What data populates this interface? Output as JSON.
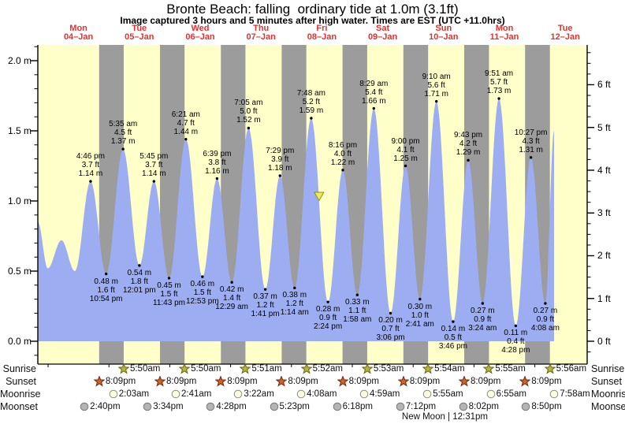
{
  "title": "Bronte Beach: falling  ordinary tide at 1.0m (3.1ft)",
  "subtitle": "Image captured 3 hours and 5 minutes after high water. Times are EST (UTC +11.0hrs)",
  "colors": {
    "day_background": "#ffffca",
    "night_band": "#9c9c9c",
    "tide_fill": "#9dadf2",
    "day_label_red": "#e53030",
    "sunrise_star_fill": "#b9b536",
    "sunrise_star_stroke": "#6b6b1d",
    "sunset_star_fill": "#cf6328",
    "sunset_star_stroke": "#7a2d12",
    "moonrise_circle_fill": "#ffffd9",
    "moonrise_circle_stroke": "#8f8f8f",
    "moonset_circle_fill": "#b4b4b4",
    "moonset_circle_stroke": "#787878",
    "marker_fill": "#f0ec54",
    "marker_stroke": "#8f8f23"
  },
  "chart_data": {
    "type": "area",
    "title": "Bronte Beach: falling  ordinary tide at 1.0m (3.1ft)",
    "ylabel_left": "m",
    "ylabel_right": "ft",
    "y_axis_left": {
      "labels": [
        "0.0 m",
        "0.5 m",
        "1.0 m",
        "1.5 m",
        "2.0 m"
      ],
      "values": [
        0.0,
        0.5,
        1.0,
        1.5,
        2.0
      ],
      "minor_step": 0.1
    },
    "y_axis_right": {
      "labels": [
        "0 ft",
        "1 ft",
        "2 ft",
        "3 ft",
        "4 ft",
        "5 ft",
        "6 ft"
      ],
      "values": [
        0,
        1,
        2,
        3,
        4,
        5,
        6
      ],
      "minor_step": 0.25
    },
    "ylim_m": [
      -0.14,
      2.11
    ],
    "grid": false,
    "legend": "none",
    "days": [
      {
        "name": "Mon",
        "date": "04–Jan"
      },
      {
        "name": "Tue",
        "date": "05–Jan"
      },
      {
        "name": "Wed",
        "date": "06–Jan"
      },
      {
        "name": "Thu",
        "date": "07–Jan"
      },
      {
        "name": "Fri",
        "date": "08–Jan"
      },
      {
        "name": "Sat",
        "date": "09–Jan"
      },
      {
        "name": "Sun",
        "date": "10–Jan"
      },
      {
        "name": "Mon",
        "date": "11–Jan"
      },
      {
        "name": "Tue",
        "date": "12–Jan"
      }
    ],
    "tide_events": [
      {
        "type": "high",
        "t": 0.6986,
        "h": 1.14,
        "time": "4:46 pm",
        "ft": "3.7 ft",
        "m": "1.14 m"
      },
      {
        "type": "low",
        "t": 0.9542,
        "h": 0.48,
        "time": "10:54 pm",
        "ft": "1.6 ft",
        "m": "0.48 m"
      },
      {
        "type": "high",
        "t": 1.2326,
        "h": 1.37,
        "time": "5:35 am",
        "ft": "4.5 ft",
        "m": "1.37 m"
      },
      {
        "type": "low",
        "t": 1.5007,
        "h": 0.54,
        "time": "12:01 pm",
        "ft": "1.8 ft",
        "m": "0.54 m"
      },
      {
        "type": "high",
        "t": 1.7396,
        "h": 1.14,
        "time": "5:45 pm",
        "ft": "3.7 ft",
        "m": "1.14 m"
      },
      {
        "type": "low",
        "t": 1.9882,
        "h": 0.45,
        "time": "11:43 pm",
        "ft": "1.5 ft",
        "m": "0.45 m"
      },
      {
        "type": "high",
        "t": 2.2646,
        "h": 1.44,
        "time": "6:21 am",
        "ft": "4.7 ft",
        "m": "1.44 m"
      },
      {
        "type": "low",
        "t": 2.5368,
        "h": 0.46,
        "time": "12:53 pm",
        "ft": "1.5 ft",
        "m": "0.46 m"
      },
      {
        "type": "high",
        "t": 2.7771,
        "h": 1.16,
        "time": "6:39 pm",
        "ft": "3.8 ft",
        "m": "1.16 m"
      },
      {
        "type": "low",
        "t": 3.0201,
        "h": 0.42,
        "time": "12:29 am",
        "ft": "1.4 ft",
        "m": "0.42 m"
      },
      {
        "type": "high",
        "t": 3.2951,
        "h": 1.52,
        "time": "7:05 am",
        "ft": "5.0 ft",
        "m": "1.52 m"
      },
      {
        "type": "low",
        "t": 3.5701,
        "h": 0.37,
        "time": "1:41 pm",
        "ft": "1.2 ft",
        "m": "0.37 m"
      },
      {
        "type": "high",
        "t": 3.8118,
        "h": 1.18,
        "time": "7:29 pm",
        "ft": "3.9 ft",
        "m": "1.18 m"
      },
      {
        "type": "low",
        "t": 4.0514,
        "h": 0.38,
        "time": "1:14 am",
        "ft": "1.2 ft",
        "m": "0.38 m"
      },
      {
        "type": "high",
        "t": 4.325,
        "h": 1.59,
        "time": "7:48 am",
        "ft": "5.2 ft",
        "m": "1.59 m"
      },
      {
        "type": "low",
        "t": 4.6,
        "h": 0.28,
        "time": "2:24 pm",
        "ft": "0.9 ft",
        "m": "0.28 m"
      },
      {
        "type": "high",
        "t": 4.8444,
        "h": 1.22,
        "time": "8:16 pm",
        "ft": "4.0 ft",
        "m": "1.22 m"
      },
      {
        "type": "low",
        "t": 5.0819,
        "h": 0.33,
        "time": "1:58 am",
        "ft": "1.1 ft",
        "m": "0.33 m"
      },
      {
        "type": "high",
        "t": 5.3535,
        "h": 1.66,
        "time": "8:29 am",
        "ft": "5.4 ft",
        "m": "1.66 m"
      },
      {
        "type": "low",
        "t": 5.6292,
        "h": 0.2,
        "time": "3:06 pm",
        "ft": "0.7 ft",
        "m": "0.20 m"
      },
      {
        "type": "high",
        "t": 5.875,
        "h": 1.25,
        "time": "9:00 pm",
        "ft": "4.1 ft",
        "m": "1.25 m"
      },
      {
        "type": "low",
        "t": 6.1118,
        "h": 0.3,
        "time": "2:41 am",
        "ft": "1.0 ft",
        "m": "0.30 m"
      },
      {
        "type": "high",
        "t": 6.3819,
        "h": 1.71,
        "time": "9:10 am",
        "ft": "5.6 ft",
        "m": "1.71 m"
      },
      {
        "type": "low",
        "t": 6.6569,
        "h": 0.14,
        "time": "3:46 pm",
        "ft": "0.5 ft",
        "m": "0.14 m"
      },
      {
        "type": "high",
        "t": 6.9049,
        "h": 1.29,
        "time": "9:43 pm",
        "ft": "4.2 ft",
        "m": "1.29 m"
      },
      {
        "type": "low",
        "t": 7.1417,
        "h": 0.27,
        "time": "3:24 am",
        "ft": "0.9 ft",
        "m": "0.27 m"
      },
      {
        "type": "high",
        "t": 7.4104,
        "h": 1.73,
        "time": "9:51 am",
        "ft": "5.7 ft",
        "m": "1.73 m"
      },
      {
        "type": "low",
        "t": 7.6861,
        "h": 0.11,
        "time": "4:28 pm",
        "ft": "0.4 ft",
        "m": "0.11 m"
      },
      {
        "type": "high",
        "t": 7.9354,
        "h": 1.31,
        "time": "10:27 pm",
        "ft": "4.3 ft",
        "m": "1.31 m"
      },
      {
        "type": "low",
        "t": 8.1722,
        "h": 0.27,
        "time": "4:08 am",
        "ft": "0.9 ft",
        "m": "0.27 m"
      }
    ],
    "curve_pre": [
      {
        "t": -0.168,
        "h": 0.85
      },
      {
        "t": -0.005,
        "h": 0.52
      },
      {
        "t": 0.22,
        "h": 0.72
      },
      {
        "t": 0.44,
        "h": 0.5
      }
    ],
    "curve_post": [
      {
        "t": 8.3155,
        "h": 1.5
      }
    ],
    "current_marker": {
      "t": 4.4535,
      "h": 1.0
    }
  },
  "astro": {
    "rows": [
      {
        "label": "Sunrise",
        "icon": "sunrise-star",
        "entries": [
          {
            "time": "5:50am",
            "t": 1.24306
          },
          {
            "time": "5:50am",
            "t": 2.24306
          },
          {
            "time": "5:51am",
            "t": 3.24375
          },
          {
            "time": "5:52am",
            "t": 4.24444
          },
          {
            "time": "5:53am",
            "t": 5.24514
          },
          {
            "time": "5:54am",
            "t": 6.24583
          },
          {
            "time": "5:55am",
            "t": 7.24653
          },
          {
            "time": "5:56am",
            "t": 8.24722
          }
        ]
      },
      {
        "label": "Sunset",
        "icon": "sunset-star",
        "entries": [
          {
            "time": "8:09pm",
            "t": 0.83958
          },
          {
            "time": "8:09pm",
            "t": 1.83958
          },
          {
            "time": "8:09pm",
            "t": 2.83958
          },
          {
            "time": "8:09pm",
            "t": 3.83958
          },
          {
            "time": "8:09pm",
            "t": 4.83958
          },
          {
            "time": "8:09pm",
            "t": 5.83958
          },
          {
            "time": "8:09pm",
            "t": 6.83958
          },
          {
            "time": "8:09pm",
            "t": 7.83958
          }
        ]
      },
      {
        "label": "Moonrise",
        "icon": "moonrise-circle",
        "entries": [
          {
            "time": "2:03am",
            "t": 1.08542
          },
          {
            "time": "2:41am",
            "t": 2.11181
          },
          {
            "time": "3:22am",
            "t": 3.14028
          },
          {
            "time": "4:08am",
            "t": 4.17222
          },
          {
            "time": "4:59am",
            "t": 5.20764
          },
          {
            "time": "5:55am",
            "t": 6.24653
          },
          {
            "time": "6:55am",
            "t": 7.28819
          },
          {
            "time": "7:58am",
            "t": 8.33194
          }
        ]
      },
      {
        "label": "Moonset",
        "icon": "moonset-circle",
        "entries": [
          {
            "time": "2:40pm",
            "t": 0.61111
          },
          {
            "time": "3:34pm",
            "t": 1.64861
          },
          {
            "time": "4:28pm",
            "t": 2.68611
          },
          {
            "time": "5:23pm",
            "t": 3.72431
          },
          {
            "time": "6:18pm",
            "t": 4.7625
          },
          {
            "time": "7:12pm",
            "t": 5.8
          },
          {
            "time": "8:02pm",
            "t": 6.83472
          },
          {
            "time": "8:50pm",
            "t": 7.86806
          }
        ]
      }
    ],
    "moon_phase": {
      "text": "New Moon | 12:31pm",
      "t": 6.52153
    }
  }
}
